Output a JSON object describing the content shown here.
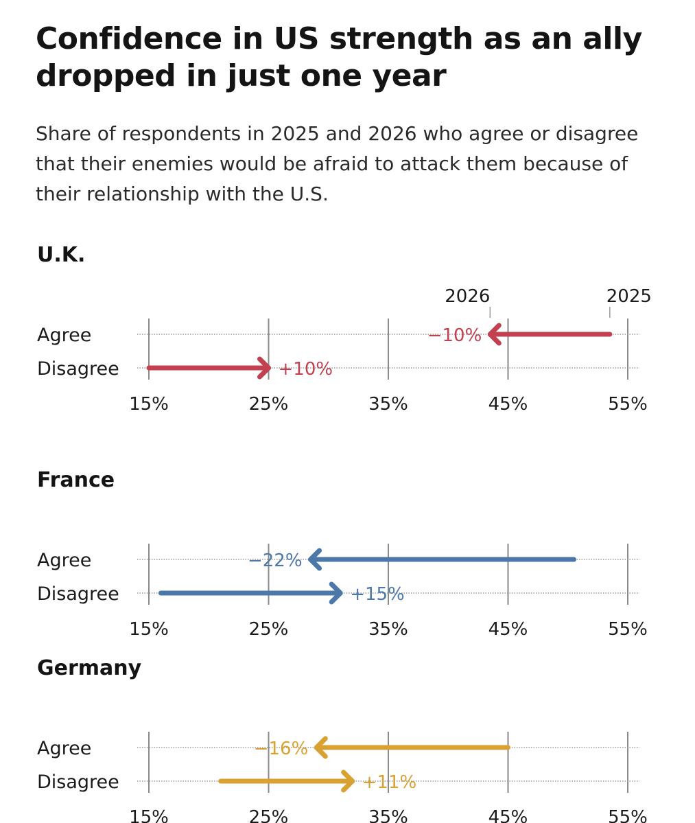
{
  "title": "Confidence in US strength as an ally dropped in just one year",
  "subtitle": "Share of respondents in 2025 and 2026 who agree or disagree that their enemies would be afraid to attack them because of their relationship with the U.S.",
  "chart_data": [
    {
      "type": "arrow-dot-plot",
      "title": "U.K.",
      "color": "#c2404f",
      "x_ticks": [
        "15%",
        "25%",
        "35%",
        "45%",
        "55%"
      ],
      "xlim": [
        15,
        55
      ],
      "year_labels": {
        "start": "2025",
        "end": "2026"
      },
      "rows": [
        {
          "label": "Agree",
          "from": 53.5,
          "to": 43.5,
          "change": "−10%"
        },
        {
          "label": "Disagree",
          "from": 15,
          "to": 25,
          "change": "+10%"
        }
      ]
    },
    {
      "type": "arrow-dot-plot",
      "title": "France",
      "color": "#4c77a9",
      "x_ticks": [
        "15%",
        "25%",
        "35%",
        "45%",
        "55%"
      ],
      "xlim": [
        15,
        55
      ],
      "rows": [
        {
          "label": "Agree",
          "from": 50.5,
          "to": 28.5,
          "change": "−22%"
        },
        {
          "label": "Disagree",
          "from": 16,
          "to": 31,
          "change": "+15%"
        }
      ]
    },
    {
      "type": "arrow-dot-plot",
      "title": "Germany",
      "color": "#d9a032",
      "x_ticks": [
        "15%",
        "25%",
        "35%",
        "45%",
        "55%"
      ],
      "xlim": [
        15,
        55
      ],
      "rows": [
        {
          "label": "Agree",
          "from": 45,
          "to": 29,
          "change": "−16%"
        },
        {
          "label": "Disagree",
          "from": 21,
          "to": 32,
          "change": "+11%"
        }
      ]
    }
  ]
}
